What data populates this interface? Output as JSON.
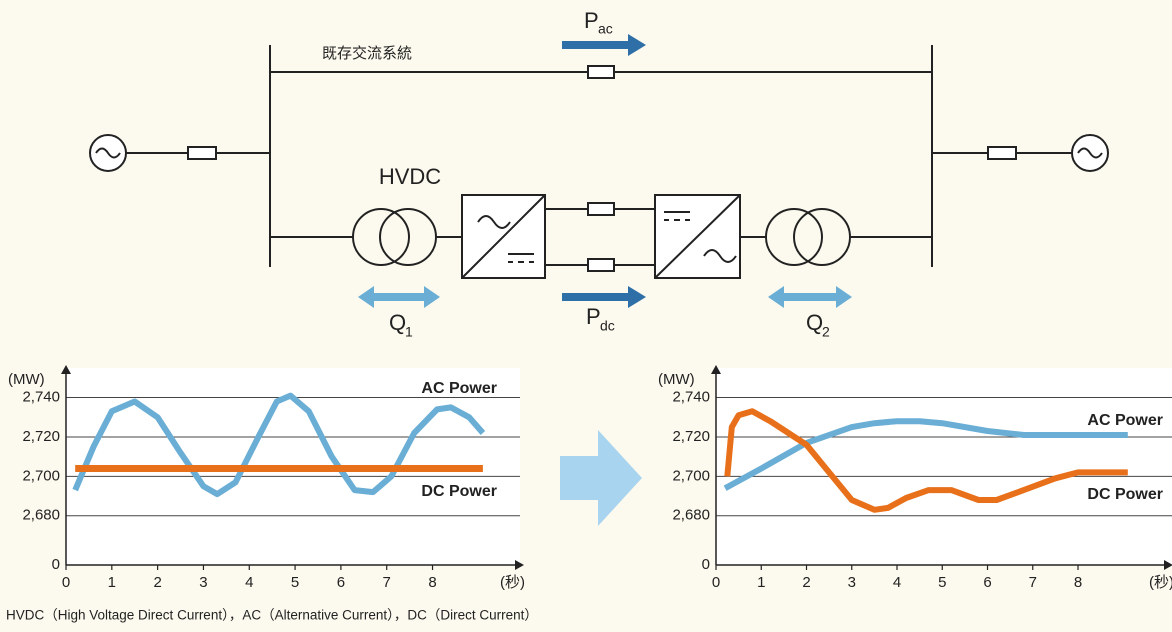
{
  "diagram": {
    "existing_ac": "既存交流系統",
    "hvdc": "HVDC",
    "p_ac": {
      "main": "P",
      "sub": "ac"
    },
    "p_dc": {
      "main": "P",
      "sub": "dc"
    },
    "q1": {
      "main": "Q",
      "sub": "1"
    },
    "q2": {
      "main": "Q",
      "sub": "2"
    }
  },
  "chart_data": [
    {
      "type": "line",
      "y_label": "(MW)",
      "x_label": "(秒)",
      "xlim": [
        0,
        9.8
      ],
      "xticks": [
        0,
        1,
        2,
        3,
        4,
        5,
        6,
        7,
        8
      ],
      "ylim": [
        2655,
        2755
      ],
      "axis_break": true,
      "yticks": [
        0,
        {
          "value": 2680,
          "label": "2,680"
        },
        {
          "value": 2700,
          "label": "2,700"
        },
        {
          "value": 2720,
          "label": "2,720"
        },
        {
          "value": 2740,
          "label": "2,740"
        }
      ],
      "grid": true,
      "series": [
        {
          "name": "AC Power",
          "color": "#6aaed6",
          "x": [
            0.2,
            0.6,
            1.0,
            1.5,
            2.0,
            2.5,
            3.0,
            3.3,
            3.7,
            4.2,
            4.6,
            4.9,
            5.3,
            5.8,
            6.3,
            6.7,
            7.1,
            7.6,
            8.1,
            8.4,
            8.8,
            9.1
          ],
          "values": [
            2693,
            2715,
            2733,
            2738,
            2730,
            2712,
            2695,
            2691,
            2697,
            2720,
            2738,
            2741,
            2733,
            2710,
            2693,
            2692,
            2700,
            2722,
            2734,
            2735,
            2730,
            2722
          ]
        },
        {
          "name": "DC Power",
          "color": "#e8701a",
          "x": [
            0.2,
            9.1
          ],
          "values": [
            2704,
            2704
          ]
        }
      ]
    },
    {
      "type": "line",
      "y_label": "(MW)",
      "x_label": "(秒)",
      "xlim": [
        0,
        9.9
      ],
      "xticks": [
        0,
        1,
        2,
        3,
        4,
        5,
        6,
        7,
        8
      ],
      "ylim": [
        2655,
        2755
      ],
      "axis_break": true,
      "yticks": [
        0,
        {
          "value": 2680,
          "label": "2,680"
        },
        {
          "value": 2700,
          "label": "2,700"
        },
        {
          "value": 2720,
          "label": "2,720"
        },
        {
          "value": 2740,
          "label": "2,740"
        }
      ],
      "grid": true,
      "series": [
        {
          "name": "AC Power",
          "color": "#6aaed6",
          "x": [
            0.2,
            1.0,
            2.0,
            3.0,
            3.5,
            4.0,
            4.5,
            5.0,
            6.0,
            6.8,
            8.0,
            9.1
          ],
          "values": [
            2694,
            2704,
            2717,
            2725,
            2727,
            2728,
            2728,
            2727,
            2723,
            2721,
            2721,
            2721
          ]
        },
        {
          "name": "DC Power",
          "color": "#e8701a",
          "x": [
            0.25,
            0.35,
            0.5,
            0.8,
            1.2,
            2.0,
            2.5,
            3.0,
            3.5,
            3.8,
            4.2,
            4.7,
            5.2,
            5.8,
            6.2,
            6.8,
            7.5,
            8.0,
            9.1
          ],
          "values": [
            2700,
            2725,
            2731,
            2733,
            2728,
            2716,
            2702,
            2688,
            2683,
            2684,
            2689,
            2693,
            2693,
            2688,
            2688,
            2693,
            2699,
            2702,
            2702
          ]
        }
      ]
    }
  ],
  "footnote": "HVDC（High Voltage Direct Current），AC（Alternative Current），DC（Direct Current）"
}
